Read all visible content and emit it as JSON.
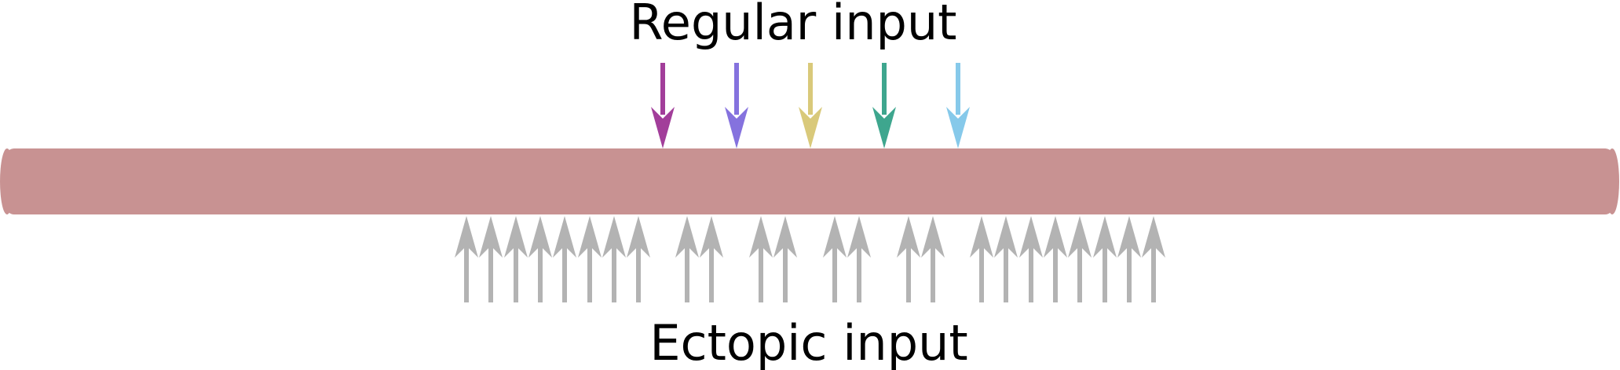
{
  "labels": {
    "regular": "Regular input",
    "ectopic": "Ectopic input"
  },
  "colors": {
    "dendrite": "#c89292",
    "ectopic_arrow": "#b3b3b3",
    "regular_arrows": [
      "#a23e9a",
      "#8572de",
      "#d9c97a",
      "#3ea68e",
      "#86c9ea"
    ]
  },
  "regular_input_count": 5,
  "ectopic_input_groups": [
    8,
    2,
    2,
    2,
    2,
    8
  ]
}
